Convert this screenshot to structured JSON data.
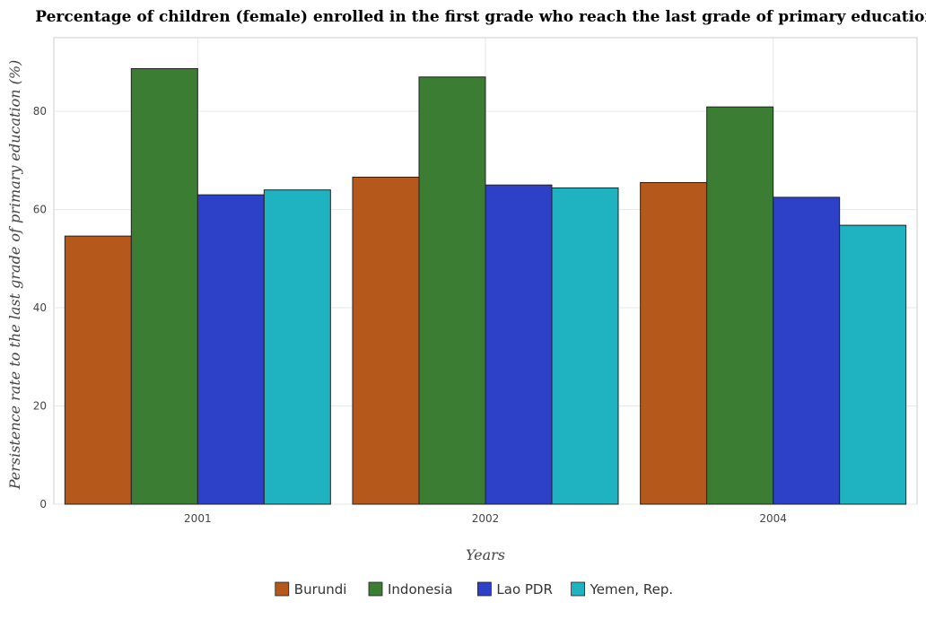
{
  "chart_data": {
    "type": "bar",
    "title": "Percentage of children (female) enrolled in the first grade who reach the last grade of primary education",
    "xlabel": "Years",
    "ylabel": "Persistence rate to the last grade of primary education (%)",
    "categories": [
      "2001",
      "2002",
      "2004"
    ],
    "ylim": [
      0,
      95
    ],
    "yticks": [
      0,
      20,
      40,
      60,
      80
    ],
    "grid": true,
    "legend_position": "bottom",
    "series": [
      {
        "name": "Burundi",
        "color": "#b5581c",
        "values": [
          54.6,
          66.6,
          65.5
        ]
      },
      {
        "name": "Indonesia",
        "color": "#3a7d33",
        "values": [
          88.7,
          87.0,
          80.9
        ]
      },
      {
        "name": "Lao PDR",
        "color": "#2c40c8",
        "values": [
          63.0,
          65.0,
          62.5
        ]
      },
      {
        "name": "Yemen, Rep.",
        "color": "#1fb3c2",
        "values": [
          64.0,
          64.4,
          56.8
        ]
      }
    ]
  }
}
